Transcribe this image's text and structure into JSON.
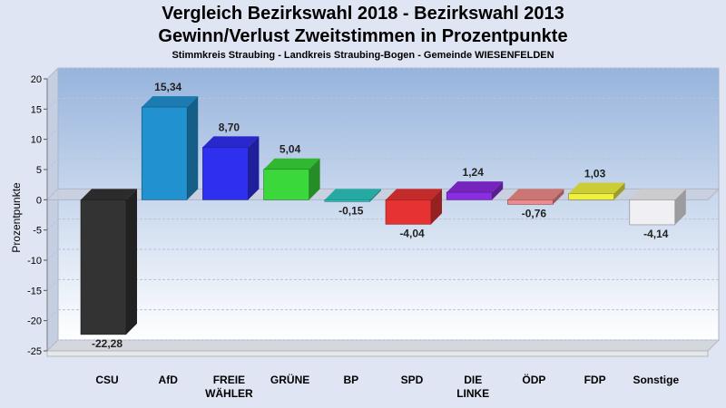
{
  "chart_data": {
    "type": "bar",
    "title": "Vergleich Bezirkswahl 2018 - Bezirkswahl 2013",
    "title2": "Gewinn/Verlust Zweitstimmen in Prozentpunkte",
    "subtitle": "Stimmkreis Straubing - Landkreis Straubing-Bogen - Gemeinde WIESENFELDEN",
    "ylabel": "Prozentpunkte",
    "ylim": [
      -25,
      20
    ],
    "yticks": [
      20,
      15,
      10,
      5,
      0,
      -5,
      -10,
      -15,
      -20,
      -25
    ],
    "grid": true,
    "categories": [
      [
        "CSU"
      ],
      [
        "AfD"
      ],
      [
        "FREIE",
        "WÄHLER"
      ],
      [
        "GRÜNE"
      ],
      [
        "BP"
      ],
      [
        "SPD"
      ],
      [
        "DIE",
        "LINKE"
      ],
      [
        "ÖDP"
      ],
      [
        "FDP"
      ],
      [
        "Sonstige"
      ]
    ],
    "values": [
      -22.28,
      15.34,
      8.7,
      5.04,
      -0.15,
      -4.04,
      1.24,
      -0.76,
      1.03,
      -4.14
    ],
    "value_labels": [
      "-22,28",
      "15,34",
      "8,70",
      "5,04",
      "-0,15",
      "-4,04",
      "1,24",
      "-0,76",
      "1,03",
      "-4,14"
    ],
    "colors": [
      "#333333",
      "#2191d0",
      "#2f2ff0",
      "#3ad83a",
      "#2ec7c0",
      "#e63232",
      "#8a2ce0",
      "#f08a8a",
      "#f0f040",
      "#f0f0f4"
    ]
  }
}
